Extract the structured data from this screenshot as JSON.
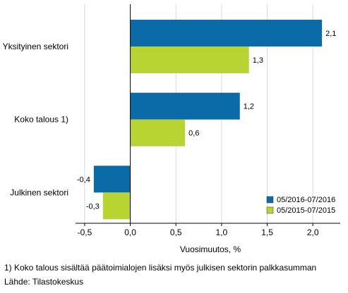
{
  "chart_data": {
    "type": "bar",
    "orientation": "horizontal",
    "categories": [
      "Yksityinen sektori",
      "Koko talous 1)",
      "Julkinen sektori"
    ],
    "series": [
      {
        "name": "05/2016-07/2016",
        "color": "#0b6aa8",
        "values": [
          2.1,
          1.2,
          -0.4
        ],
        "labels": [
          "2,1",
          "1,2",
          "-0,4"
        ]
      },
      {
        "name": "05/2015-07/2015",
        "color": "#b8d433",
        "values": [
          1.3,
          0.6,
          -0.3
        ],
        "labels": [
          "1,3",
          "0,6",
          "-0,3"
        ]
      }
    ],
    "xlabel": "Vuosimuutos, %",
    "xlim": [
      -0.6,
      2.3
    ],
    "xticks": [
      -0.5,
      0.0,
      0.5,
      1.0,
      1.5,
      2.0
    ],
    "xtick_labels": [
      "-0,5",
      "0,0",
      "0,5",
      "1,0",
      "1,5",
      "2,0"
    ],
    "grid": "vertical",
    "legend_position": "bottom-right"
  },
  "notes": {
    "footnote": "1) Koko talous sisältää päätoimialojen lisäksi myös julkisen sektorin palkkasumman",
    "source": "Lähde: Tilastokeskus"
  }
}
